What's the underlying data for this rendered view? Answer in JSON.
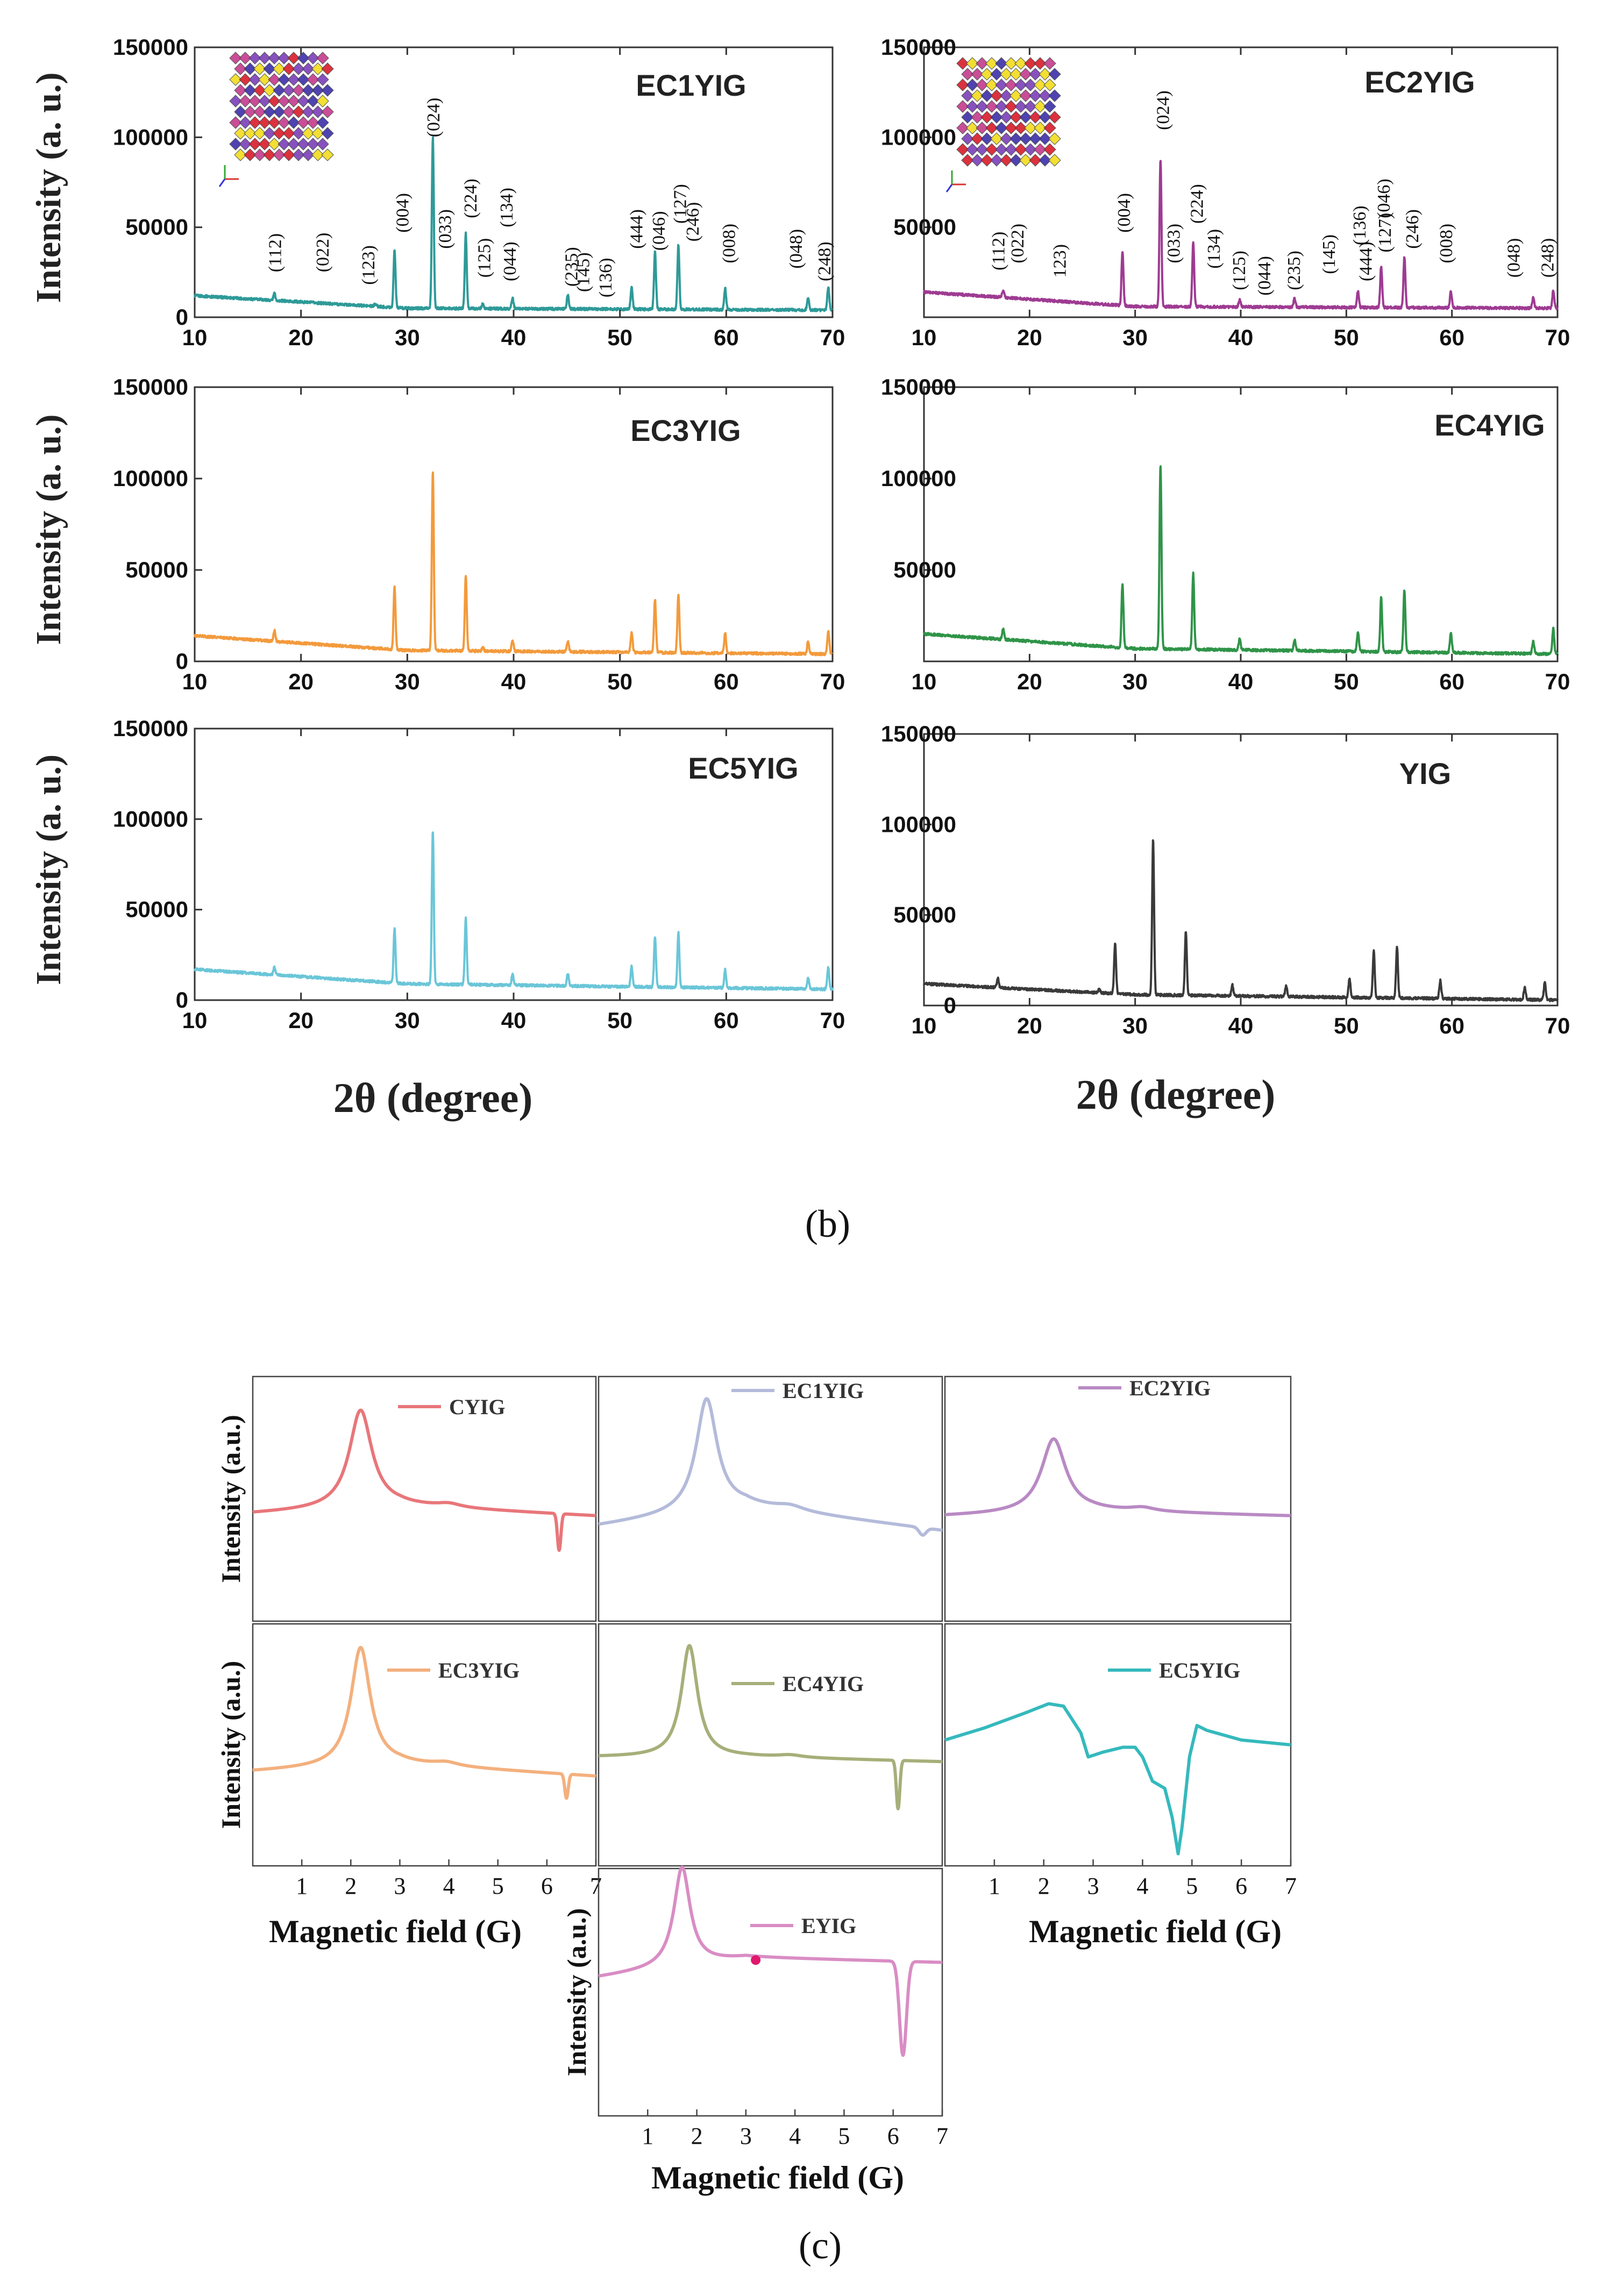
{
  "figure": {
    "panel_b_caption": "(b)",
    "panel_c_caption": "(c)",
    "xrd_xlabel": "2θ  (degree)",
    "epr_xlabel": "Magnetic field (G)"
  },
  "chart_data": [
    {
      "id": "xrd-ec1yig",
      "type": "line",
      "title": "EC1YIG",
      "color": "#2e9a98",
      "xlabel": "2θ (degree)",
      "ylabel": "Intensity (a. u.)",
      "xlim": [
        10,
        70
      ],
      "ylim": [
        0,
        150000
      ],
      "xticks": [
        10,
        20,
        30,
        40,
        50,
        60,
        70
      ],
      "yticks": [
        0,
        50000,
        100000,
        150000
      ],
      "ytick_labels": [
        "0",
        "50000",
        "100000",
        "150000"
      ],
      "baseline": [
        [
          10,
          12000
        ],
        [
          30,
          5000
        ],
        [
          70,
          4000
        ]
      ],
      "peaks": [
        [
          17.5,
          4000
        ],
        [
          27,
          1500
        ],
        [
          28.8,
          32000
        ],
        [
          32.4,
          95000
        ],
        [
          35.5,
          42000
        ],
        [
          37.1,
          3000
        ],
        [
          39.9,
          6000
        ],
        [
          45.1,
          8000
        ],
        [
          51.1,
          12000
        ],
        [
          53.3,
          32000
        ],
        [
          55.5,
          36000
        ],
        [
          59.9,
          12000
        ],
        [
          67.7,
          7000
        ],
        [
          69.6,
          13000
        ]
      ],
      "annotations": [
        {
          "x": 17.5,
          "y": 25000,
          "label": "(112)"
        },
        {
          "x": 22,
          "y": 25000,
          "label": "(022)"
        },
        {
          "x": 26.3,
          "y": 18000,
          "label": "(123)"
        },
        {
          "x": 29.5,
          "y": 47000,
          "label": "(004)"
        },
        {
          "x": 32.4,
          "y": 100000,
          "label": "(024)"
        },
        {
          "x": 33.5,
          "y": 38000,
          "label": "(033)"
        },
        {
          "x": 35.9,
          "y": 55000,
          "label": "(224)"
        },
        {
          "x": 37.2,
          "y": 22000,
          "label": "(125)"
        },
        {
          "x": 39.3,
          "y": 50000,
          "label": "(134)"
        },
        {
          "x": 39.6,
          "y": 20000,
          "label": "(044)"
        },
        {
          "x": 45.4,
          "y": 17000,
          "label": "(235)"
        },
        {
          "x": 46.5,
          "y": 14000,
          "label": "(145)"
        },
        {
          "x": 48.6,
          "y": 11000,
          "label": "(136)"
        },
        {
          "x": 51.5,
          "y": 38000,
          "label": "(444)"
        },
        {
          "x": 53.6,
          "y": 37000,
          "label": "(046)"
        },
        {
          "x": 55.6,
          "y": 52000,
          "label": "(127)"
        },
        {
          "x": 56.8,
          "y": 42000,
          "label": "(246)"
        },
        {
          "x": 60.2,
          "y": 30000,
          "label": "(008)"
        },
        {
          "x": 66.5,
          "y": 27000,
          "label": "(048)"
        },
        {
          "x": 69.2,
          "y": 20000,
          "label": "(248)"
        }
      ]
    },
    {
      "id": "xrd-ec2yig",
      "type": "line",
      "title": "EC2YIG",
      "color": "#9e3b92",
      "xlabel": "2θ (degree)",
      "ylabel": "Intensity (a. u.)",
      "xlim": [
        10,
        70
      ],
      "ylim": [
        0,
        150000
      ],
      "xticks": [
        10,
        20,
        30,
        40,
        50,
        60,
        70
      ],
      "yticks": [
        50000,
        100000,
        150000
      ],
      "ytick_labels": [
        "50000",
        "100000",
        "150000"
      ],
      "baseline": [
        [
          10,
          14000
        ],
        [
          30,
          6000
        ],
        [
          70,
          5000
        ]
      ],
      "peaks": [
        [
          17.5,
          4000
        ],
        [
          28.8,
          30000
        ],
        [
          32.4,
          82000
        ],
        [
          35.5,
          36000
        ],
        [
          39.9,
          4000
        ],
        [
          45.1,
          5000
        ],
        [
          51.1,
          9000
        ],
        [
          53.3,
          23000
        ],
        [
          55.5,
          28000
        ],
        [
          59.9,
          9000
        ],
        [
          67.7,
          6000
        ],
        [
          69.6,
          10000
        ]
      ],
      "annotations": [
        {
          "x": 17,
          "y": 26000,
          "label": "(112)"
        },
        {
          "x": 18.8,
          "y": 30000,
          "label": "(022)"
        },
        {
          "x": 22.8,
          "y": 22000,
          "label": "123)"
        },
        {
          "x": 28.9,
          "y": 47000,
          "label": "(004)"
        },
        {
          "x": 32.6,
          "y": 104000,
          "label": "(024)"
        },
        {
          "x": 33.6,
          "y": 30000,
          "label": "(033)"
        },
        {
          "x": 35.8,
          "y": 52000,
          "label": "(224)"
        },
        {
          "x": 37.4,
          "y": 27000,
          "label": "(134)"
        },
        {
          "x": 39.8,
          "y": 15000,
          "label": "(125)"
        },
        {
          "x": 42.2,
          "y": 12000,
          "label": "(044)"
        },
        {
          "x": 45,
          "y": 15000,
          "label": "(235)"
        },
        {
          "x": 48.3,
          "y": 24000,
          "label": "(145)"
        },
        {
          "x": 51.2,
          "y": 40000,
          "label": "(136)"
        },
        {
          "x": 51.8,
          "y": 20000,
          "label": "(444)"
        },
        {
          "x": 53.5,
          "y": 55000,
          "label": "(046)"
        },
        {
          "x": 53.6,
          "y": 36000,
          "label": "(127)"
        },
        {
          "x": 56.2,
          "y": 38000,
          "label": "(246)"
        },
        {
          "x": 59.4,
          "y": 30000,
          "label": "(008)"
        },
        {
          "x": 65.8,
          "y": 22000,
          "label": "(048)"
        },
        {
          "x": 69,
          "y": 22000,
          "label": "(248)"
        }
      ]
    },
    {
      "id": "xrd-ec3yig",
      "type": "line",
      "title": "EC3YIG",
      "color": "#f39a3c",
      "xlabel": "2θ (degree)",
      "ylabel": "Intensity (a. u.)",
      "xlim": [
        10,
        70
      ],
      "ylim": [
        0,
        150000
      ],
      "xticks": [
        10,
        20,
        30,
        40,
        50,
        60,
        70
      ],
      "yticks": [
        0,
        50000,
        100000,
        150000
      ],
      "ytick_labels": [
        "0",
        "50000",
        "100000",
        "150000"
      ],
      "baseline": [
        [
          10,
          14000
        ],
        [
          30,
          6000
        ],
        [
          70,
          4000
        ]
      ],
      "peaks": [
        [
          17.5,
          6000
        ],
        [
          28.8,
          34000
        ],
        [
          32.4,
          98000
        ],
        [
          35.5,
          41000
        ],
        [
          37.1,
          2000
        ],
        [
          39.9,
          6000
        ],
        [
          45.1,
          6000
        ],
        [
          51.1,
          11000
        ],
        [
          53.3,
          29000
        ],
        [
          55.5,
          32000
        ],
        [
          59.9,
          11000
        ],
        [
          67.7,
          7000
        ],
        [
          69.6,
          13000
        ]
      ],
      "annotations": []
    },
    {
      "id": "xrd-ec4yig",
      "type": "line",
      "title": "EC4YIG",
      "color": "#2f9448",
      "xlabel": "2θ (degree)",
      "ylabel": "Intensity (a. u.)",
      "xlim": [
        10,
        70
      ],
      "ylim": [
        0,
        150000
      ],
      "xticks": [
        10,
        20,
        30,
        40,
        50,
        60,
        70
      ],
      "yticks": [
        50000,
        100000,
        150000
      ],
      "ytick_labels": [
        "50000",
        "100000",
        "150000"
      ],
      "baseline": [
        [
          10,
          15000
        ],
        [
          30,
          7000
        ],
        [
          70,
          4000
        ]
      ],
      "peaks": [
        [
          17.5,
          6000
        ],
        [
          28.8,
          35000
        ],
        [
          32.4,
          101000
        ],
        [
          35.5,
          42000
        ],
        [
          39.9,
          6000
        ],
        [
          45.1,
          6000
        ],
        [
          51.1,
          11000
        ],
        [
          53.3,
          30000
        ],
        [
          55.5,
          34000
        ],
        [
          59.9,
          11000
        ],
        [
          67.7,
          7000
        ],
        [
          69.6,
          14000
        ]
      ],
      "annotations": []
    },
    {
      "id": "xrd-ec5yig",
      "type": "line",
      "title": "EC5YIG",
      "color": "#6ac6d8",
      "xlabel": "2θ (degree)",
      "ylabel": "Intensity (a. u.)",
      "xlim": [
        10,
        70
      ],
      "ylim": [
        0,
        150000
      ],
      "xticks": [
        10,
        20,
        30,
        40,
        50,
        60,
        70
      ],
      "yticks": [
        0,
        50000,
        100000,
        150000
      ],
      "ytick_labels": [
        "0",
        "50000",
        "100000",
        "150000"
      ],
      "baseline": [
        [
          10,
          17000
        ],
        [
          30,
          9000
        ],
        [
          70,
          6000
        ]
      ],
      "peaks": [
        [
          17.5,
          4000
        ],
        [
          28.8,
          30000
        ],
        [
          32.4,
          85000
        ],
        [
          35.5,
          37000
        ],
        [
          39.9,
          6000
        ],
        [
          45.1,
          7000
        ],
        [
          51.1,
          11000
        ],
        [
          53.3,
          28000
        ],
        [
          55.5,
          30000
        ],
        [
          59.9,
          10000
        ],
        [
          67.7,
          6000
        ],
        [
          69.6,
          12000
        ]
      ],
      "annotations": []
    },
    {
      "id": "xrd-yig",
      "type": "line",
      "title": "YIG",
      "color": "#3a3a3a",
      "xlabel": "2θ (degree)",
      "ylabel": "Intensity (a. u.)",
      "xlim": [
        10,
        70
      ],
      "ylim": [
        0,
        150000
      ],
      "xticks": [
        10,
        20,
        30,
        40,
        50,
        60,
        70
      ],
      "yticks": [
        0,
        50000,
        100000,
        150000
      ],
      "ytick_labels": [
        "0",
        "50000",
        "100000",
        "150000"
      ],
      "baseline": [
        [
          10,
          12000
        ],
        [
          30,
          6000
        ],
        [
          70,
          3000
        ]
      ],
      "peaks": [
        [
          17,
          5000
        ],
        [
          26.6,
          2000
        ],
        [
          28.1,
          28000
        ],
        [
          31.7,
          86000
        ],
        [
          34.8,
          35000
        ],
        [
          39.2,
          6000
        ],
        [
          44.3,
          6000
        ],
        [
          50.3,
          10000
        ],
        [
          52.6,
          26000
        ],
        [
          54.8,
          28000
        ],
        [
          58.9,
          10000
        ],
        [
          66.9,
          7000
        ],
        [
          68.8,
          10000
        ]
      ],
      "annotations": []
    },
    {
      "id": "epr-cyig",
      "type": "line",
      "title": "CYIG",
      "color": "#e8767a",
      "xlim": [
        0,
        7
      ],
      "ylim": [
        0,
        1
      ],
      "xticks": [
        1,
        2,
        3,
        4,
        5,
        6,
        7
      ],
      "baseline": [
        [
          0,
          0.44
        ],
        [
          3,
          0.47
        ],
        [
          7,
          0.43
        ]
      ],
      "features": [
        {
          "type": "peak",
          "x": 2.2,
          "amp": 0.4,
          "w": 0.28
        },
        {
          "type": "peak",
          "x": 4.0,
          "amp": 0.015,
          "w": 0.3
        },
        {
          "type": "dip",
          "x": 6.25,
          "amp": 0.15,
          "w": 0.05
        }
      ],
      "legend": "CYIG"
    },
    {
      "id": "epr-ec1yig",
      "type": "line",
      "title": "EC1YIG",
      "color": "#b4bbda",
      "xlim": [
        0,
        7
      ],
      "ylim": [
        0,
        1
      ],
      "xticks": [
        1,
        2,
        3,
        4,
        5,
        6,
        7
      ],
      "baseline": [
        [
          0,
          0.39
        ],
        [
          3,
          0.47
        ],
        [
          7,
          0.37
        ]
      ],
      "features": [
        {
          "type": "peak",
          "x": 2.2,
          "amp": 0.46,
          "w": 0.26
        },
        {
          "type": "peak",
          "x": 3.9,
          "amp": 0.02,
          "w": 0.35
        },
        {
          "type": "dip",
          "x": 6.6,
          "amp": 0.03,
          "w": 0.1
        }
      ],
      "legend": "EC1YIG"
    },
    {
      "id": "epr-ec2yig",
      "type": "line",
      "title": "EC2YIG",
      "color": "#b98ac4",
      "xlim": [
        0,
        7
      ],
      "ylim": [
        0,
        1
      ],
      "xticks": [
        1,
        2,
        3,
        4,
        5,
        6,
        7
      ],
      "baseline": [
        [
          0,
          0.43
        ],
        [
          3,
          0.45
        ],
        [
          7,
          0.43
        ]
      ],
      "features": [
        {
          "type": "peak",
          "x": 2.2,
          "amp": 0.3,
          "w": 0.3
        },
        {
          "type": "peak",
          "x": 4.0,
          "amp": 0.015,
          "w": 0.3
        }
      ],
      "legend": "EC2YIG"
    },
    {
      "id": "epr-ec3yig",
      "type": "line",
      "title": "EC3YIG",
      "color": "#f3b07e",
      "xlim": [
        0,
        7
      ],
      "ylim": [
        0,
        1
      ],
      "xticks": [
        1,
        2,
        3,
        4,
        5,
        6,
        7
      ],
      "baseline": [
        [
          0,
          0.39
        ],
        [
          3,
          0.42
        ],
        [
          7,
          0.37
        ]
      ],
      "features": [
        {
          "type": "peak",
          "x": 2.2,
          "amp": 0.49,
          "w": 0.24
        },
        {
          "type": "peak",
          "x": 3.95,
          "amp": 0.015,
          "w": 0.3
        },
        {
          "type": "dip",
          "x": 6.4,
          "amp": 0.1,
          "w": 0.05
        }
      ],
      "legend": "EC3YIG"
    },
    {
      "id": "epr-ec4yig",
      "type": "line",
      "title": "EC4YIG",
      "color": "#a6af79",
      "xlim": [
        0,
        7
      ],
      "ylim": [
        0,
        1
      ],
      "xticks": [
        1,
        2,
        3,
        4,
        5,
        6,
        7
      ],
      "baseline": [
        [
          0,
          0.45
        ],
        [
          3,
          0.45
        ],
        [
          7,
          0.43
        ]
      ],
      "features": [
        {
          "type": "peak",
          "x": 1.85,
          "amp": 0.46,
          "w": 0.2
        },
        {
          "type": "peak",
          "x": 3.9,
          "amp": 0.01,
          "w": 0.3
        },
        {
          "type": "dip",
          "x": 6.1,
          "amp": 0.2,
          "w": 0.05
        }
      ],
      "legend": "EC4YIG"
    },
    {
      "id": "epr-ec5yig",
      "type": "line",
      "title": "EC5YIG",
      "color": "#35b9bd",
      "xlim": [
        0,
        7
      ],
      "ylim": [
        0,
        1
      ],
      "xticks": [
        1,
        2,
        3,
        4,
        5,
        6,
        7
      ],
      "points": [
        [
          0,
          0.52
        ],
        [
          0.8,
          0.57
        ],
        [
          1.6,
          0.63
        ],
        [
          2.1,
          0.67
        ],
        [
          2.4,
          0.66
        ],
        [
          2.75,
          0.55
        ],
        [
          2.9,
          0.45
        ],
        [
          3.2,
          0.47
        ],
        [
          3.6,
          0.49
        ],
        [
          3.85,
          0.49
        ],
        [
          4.0,
          0.45
        ],
        [
          4.2,
          0.35
        ],
        [
          4.45,
          0.32
        ],
        [
          4.6,
          0.2
        ],
        [
          4.72,
          0.05
        ],
        [
          4.8,
          0.16
        ],
        [
          4.95,
          0.45
        ],
        [
          5.1,
          0.58
        ],
        [
          5.3,
          0.56
        ],
        [
          6.0,
          0.52
        ],
        [
          7.0,
          0.5
        ]
      ],
      "legend": "EC5YIG"
    },
    {
      "id": "epr-eyig",
      "type": "line",
      "title": "EYIG",
      "color": "#d98dc4",
      "xlim": [
        0,
        7
      ],
      "ylim": [
        0,
        1
      ],
      "xticks": [
        1,
        2,
        3,
        4,
        5,
        6,
        7
      ],
      "baseline": [
        [
          0,
          0.56
        ],
        [
          3,
          0.64
        ],
        [
          7,
          0.62
        ]
      ],
      "features": [
        {
          "type": "peak",
          "x": 1.7,
          "amp": 0.4,
          "w": 0.2
        },
        {
          "type": "dip",
          "x": 6.2,
          "amp": 0.38,
          "w": 0.1
        }
      ],
      "marker": [
        3.2,
        0.63
      ],
      "marker_color": "#e0186c",
      "legend": "EYIG"
    }
  ]
}
